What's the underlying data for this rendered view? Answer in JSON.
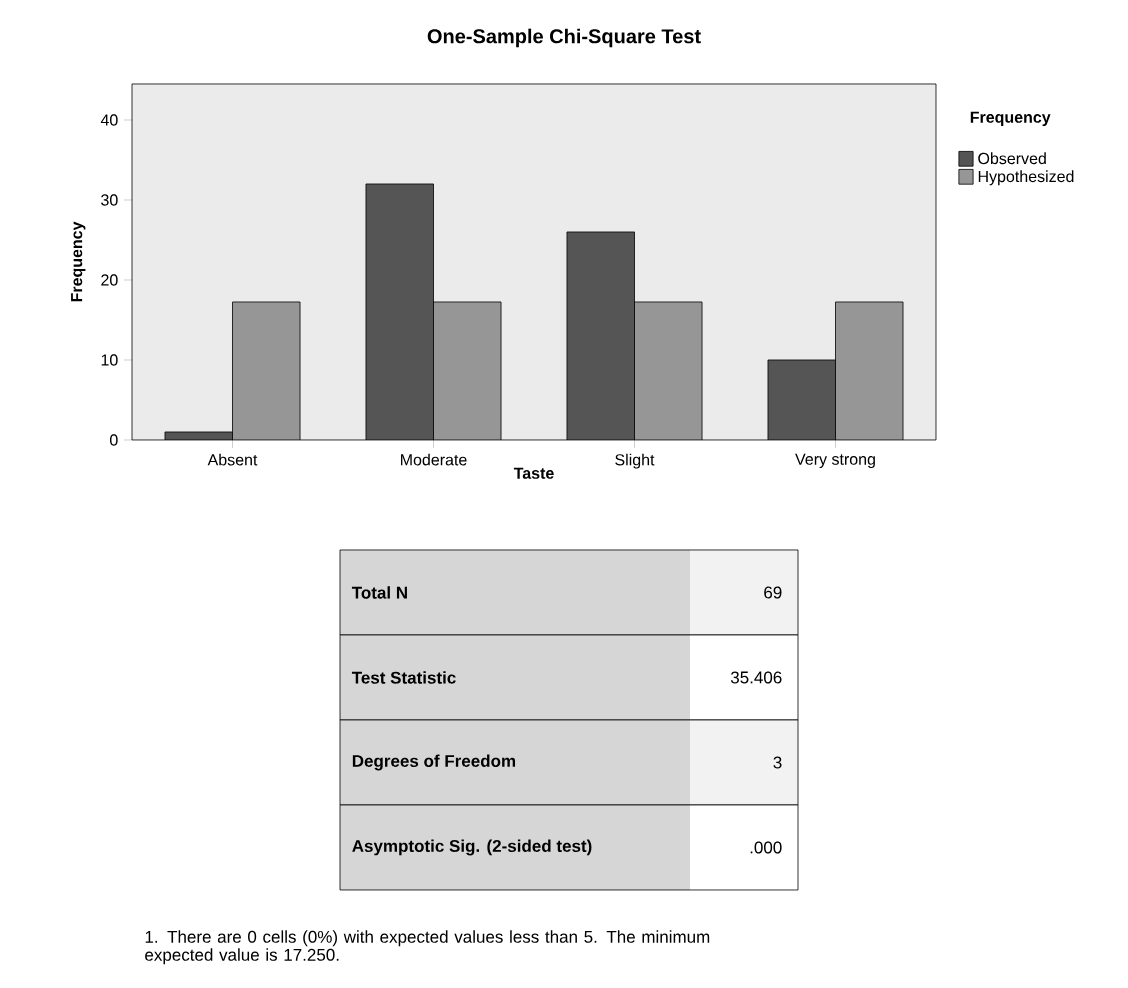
{
  "chart_data": {
    "type": "bar",
    "title": "One-Sample Chi-Square Test",
    "xlabel": "Taste",
    "ylabel": "Frequency",
    "legend_title": "Frequency",
    "categories": [
      "Absent",
      "Moderate",
      "Slight",
      "Very strong"
    ],
    "series": [
      {
        "name": "Observed",
        "color": "#555555",
        "values": [
          1,
          32,
          26,
          10
        ]
      },
      {
        "name": "Hypothesized",
        "color": "#969696",
        "values": [
          17.25,
          17.25,
          17.25,
          17.25
        ]
      }
    ],
    "ylim": [
      0,
      44.5
    ],
    "yticks": [
      0,
      10,
      20,
      30,
      40
    ],
    "grid": false,
    "legend": "right",
    "annotations": [
      "Total N",
      "69",
      "Test Statistic",
      "35.406",
      "Degrees of Freedom",
      "3",
      "Asymptotic Sig. (2-sided test)",
      ".000",
      "1.  There are 0 cells (0%) with expected values less than 5.  The minimum expected value is 17.250."
    ]
  }
}
